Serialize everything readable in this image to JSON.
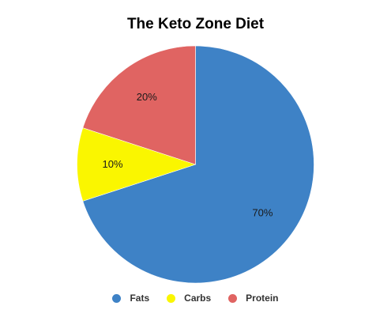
{
  "chart_data": {
    "type": "pie",
    "title": "The Keto Zone Diet",
    "slices": [
      {
        "label": "Fats",
        "value": 70,
        "display": "70%",
        "color": "#3e82c6"
      },
      {
        "label": "Carbs",
        "value": 10,
        "display": "10%",
        "color": "#faf600"
      },
      {
        "label": "Protein",
        "value": 20,
        "display": "20%",
        "color": "#e06462"
      }
    ],
    "legend_position": "bottom"
  }
}
